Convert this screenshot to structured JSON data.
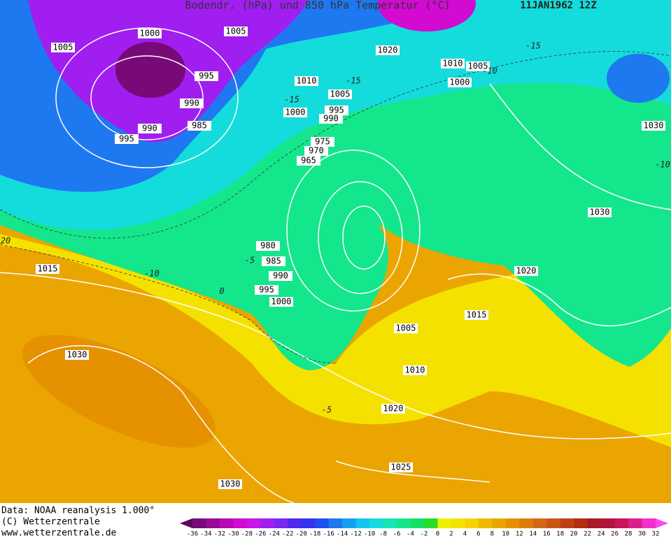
{
  "header": {
    "title": "Bodendr. (hPa) und 850 hPa Temperatur (°C)",
    "date": "11JAN1962 12Z"
  },
  "isobar_labels": [
    "1000",
    "1005",
    "1005",
    "995",
    "990",
    "990",
    "995",
    "985",
    "1010",
    "1005",
    "1000",
    "995",
    "990",
    "1020",
    "1010",
    "1005",
    "1000",
    "975",
    "970",
    "965",
    "980",
    "985",
    "990",
    "995",
    "1000",
    "1005",
    "1010",
    "1020",
    "1025",
    "1030",
    "1030",
    "1015",
    "1015",
    "1020",
    "1030",
    "1030"
  ],
  "isotherm_labels": [
    "-10",
    "-5",
    "0",
    "-15",
    "-15",
    "-10",
    "20",
    "-5",
    "-15",
    "-10"
  ],
  "footer": {
    "lines": [
      "Data: NOAA reanalysis 1.000°",
      "(C) Wetterzentrale",
      "www.wetterzentrale.de"
    ]
  },
  "legend": {
    "ticks": [
      -36,
      -34,
      -32,
      -30,
      -28,
      -26,
      -24,
      -22,
      -20,
      -18,
      -16,
      -14,
      -12,
      -10,
      -8,
      -6,
      -4,
      -2,
      0,
      2,
      4,
      6,
      8,
      10,
      12,
      14,
      16,
      18,
      20,
      22,
      24,
      26,
      28,
      30,
      32
    ],
    "colors": [
      "#5a0a5a",
      "#780a78",
      "#960a96",
      "#b40ab4",
      "#d20ad2",
      "#c814e6",
      "#a01ef0",
      "#7828f0",
      "#5028f0",
      "#3232f0",
      "#1e50f0",
      "#1e78f0",
      "#14a0f0",
      "#14c3f0",
      "#14dcdc",
      "#14e6b4",
      "#14e68c",
      "#14e164",
      "#28dc28",
      "#f0f000",
      "#f5e100",
      "#f5d200",
      "#f0b900",
      "#eba500",
      "#e69100",
      "#dc7d0a",
      "#d26914",
      "#c85514",
      "#be4114",
      "#b42d14",
      "#aa1928",
      "#b4143c",
      "#c8145a",
      "#dc1e8c",
      "#f032c8",
      "#ff46f0"
    ]
  }
}
